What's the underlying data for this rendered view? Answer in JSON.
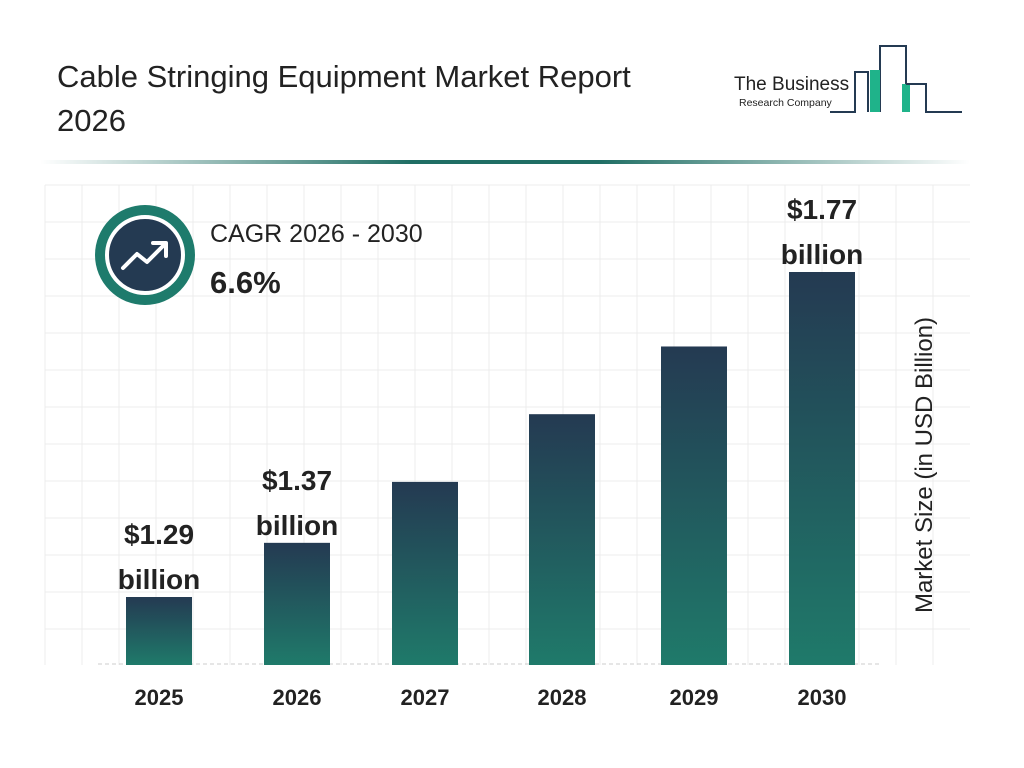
{
  "header": {
    "title": "Cable Stringing Equipment Market Report 2026"
  },
  "logo": {
    "line1": "The Business",
    "line2": "Research Company"
  },
  "cagr": {
    "label": "CAGR 2026 - 2030",
    "value": "6.6%",
    "icon": "trend-up-arrow-icon"
  },
  "colors": {
    "bar_top": "#243a52",
    "bar_bottom": "#1f7a6a",
    "accent": "#1e7b6c"
  },
  "chart_data": {
    "type": "bar",
    "title": "Cable Stringing Equipment Market Report 2026",
    "categories": [
      "2025",
      "2026",
      "2027",
      "2028",
      "2029",
      "2030"
    ],
    "values": [
      1.29,
      1.37,
      1.46,
      1.56,
      1.66,
      1.77
    ],
    "data_labels": [
      {
        "index": 0,
        "line1": "$1.29",
        "line2": "billion"
      },
      {
        "index": 1,
        "line1": "$1.37",
        "line2": "billion"
      },
      {
        "index": 5,
        "line1": "$1.77",
        "line2": "billion"
      }
    ],
    "xlabel": "",
    "ylabel": "Market Size (in USD Billion)",
    "grid": true,
    "legend": "none"
  }
}
